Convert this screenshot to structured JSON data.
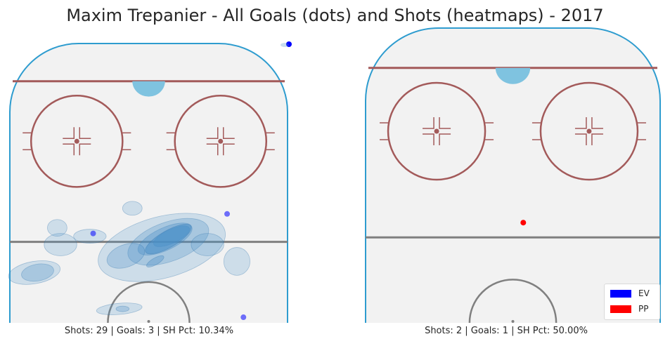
{
  "title": "Maxim Trepanier - All Goals (dots) and Shots (heatmaps) - 2017",
  "colors": {
    "ice": "#f2f2f2",
    "boards": "#2e9ccf",
    "red_line": "#a35a5a",
    "center_line": "#808080",
    "crease": "#7fc3e0",
    "ev": "#0000ff",
    "pp": "#ff0000",
    "heat": "#4a90c8"
  },
  "legend": {
    "items": [
      {
        "label": "EV",
        "color": "#0000ff"
      },
      {
        "label": "PP",
        "color": "#ff0000"
      }
    ]
  },
  "chart_data": [
    {
      "type": "heatmap",
      "panel": "EV",
      "caption": "Shots: 29 | Goals: 3 | SH Pct: 10.34%",
      "shots": 29,
      "goals": 3,
      "sh_pct": 10.34,
      "goal_points": [
        {
          "x": -17,
          "y": 68,
          "strength": "EV"
        },
        {
          "x": 24,
          "y": 61,
          "strength": "EV"
        },
        {
          "x": 29,
          "y": 98,
          "strength": "EV"
        }
      ],
      "heat_zones": [
        {
          "x": 7,
          "y": 69,
          "rx": 6,
          "ry": 2.5,
          "angle": -25,
          "level": 4
        },
        {
          "x": 5,
          "y": 70,
          "rx": 9,
          "ry": 4,
          "angle": -25,
          "level": 3
        },
        {
          "x": 6,
          "y": 71,
          "rx": 13,
          "ry": 7,
          "angle": -20,
          "level": 2
        },
        {
          "x": 4,
          "y": 73,
          "rx": 20,
          "ry": 11,
          "angle": -15,
          "level": 1
        },
        {
          "x": -7,
          "y": 76,
          "rx": 6,
          "ry": 4,
          "angle": -20,
          "level": 2
        },
        {
          "x": 18,
          "y": 72,
          "rx": 5,
          "ry": 4,
          "angle": 0,
          "level": 1
        },
        {
          "x": -18,
          "y": 69,
          "rx": 5,
          "ry": 2.5,
          "angle": 0,
          "level": 1
        },
        {
          "x": -27,
          "y": 72,
          "rx": 5,
          "ry": 4,
          "angle": 0,
          "level": 1
        },
        {
          "x": -28,
          "y": 66,
          "rx": 3,
          "ry": 3,
          "angle": 0,
          "level": 1
        },
        {
          "x": -34,
          "y": 82,
          "rx": 5,
          "ry": 3,
          "angle": -10,
          "level": 2
        },
        {
          "x": -35,
          "y": 82,
          "rx": 8,
          "ry": 4,
          "angle": -10,
          "level": 1
        },
        {
          "x": 27,
          "y": 78,
          "rx": 4,
          "ry": 5,
          "angle": 0,
          "level": 1
        },
        {
          "x": 2,
          "y": 78,
          "rx": 3,
          "ry": 1.2,
          "angle": -30,
          "level": 3
        },
        {
          "x": 6,
          "y": 70,
          "rx": 8,
          "ry": 3,
          "angle": -30,
          "level": 5
        },
        {
          "x": -5,
          "y": 59,
          "rx": 3,
          "ry": 2.5,
          "angle": 0,
          "level": 1
        },
        {
          "x": -9,
          "y": 95,
          "rx": 7,
          "ry": 2,
          "angle": -5,
          "level": 1
        },
        {
          "x": -8,
          "y": 95,
          "rx": 2,
          "ry": 1,
          "angle": 0,
          "level": 2
        }
      ]
    },
    {
      "type": "heatmap",
      "panel": "PP",
      "caption": "Shots: 2 | Goals: 1 | SH Pct: 50.00%",
      "shots": 2,
      "goals": 1,
      "sh_pct": 50.0,
      "goal_points": [
        {
          "x": 3,
          "y": 66,
          "strength": "PP"
        }
      ],
      "heat_zones": []
    }
  ]
}
